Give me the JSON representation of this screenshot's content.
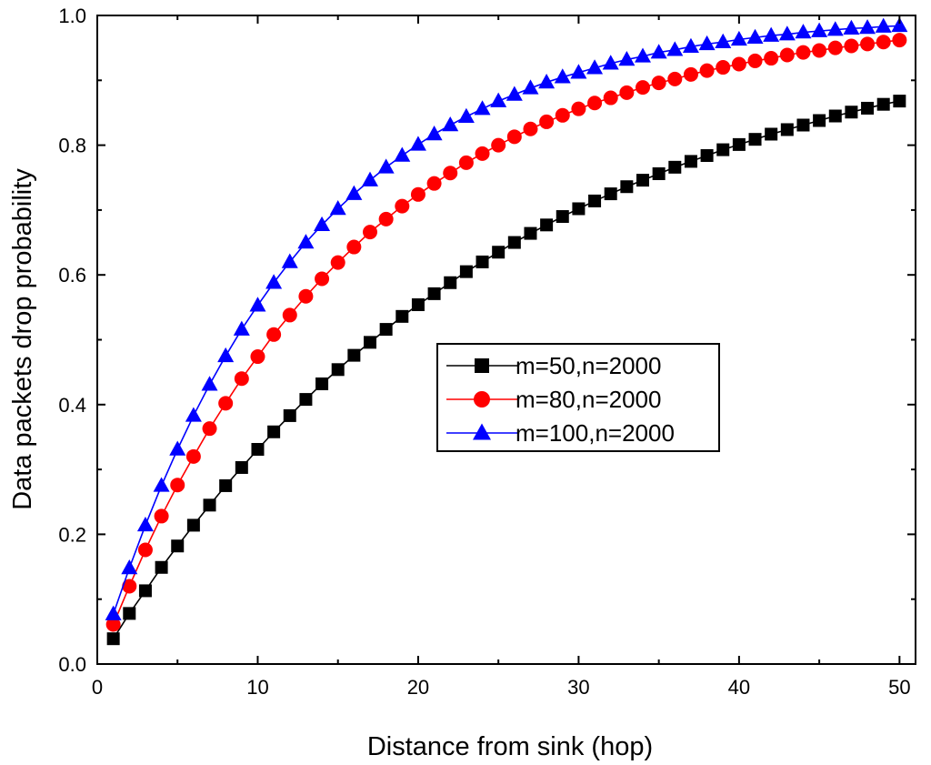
{
  "chart_data": {
    "type": "line",
    "title": "",
    "xlabel": "Distance from sink  (hop)",
    "ylabel": "Data packets drop probability",
    "xlim": [
      0,
      51
    ],
    "ylim": [
      0,
      1.0
    ],
    "x_ticks": [
      0,
      10,
      20,
      30,
      40,
      50
    ],
    "x_tick_labels": [
      "0",
      "10",
      "20",
      "30",
      "40",
      "50"
    ],
    "y_ticks": [
      0.0,
      0.2,
      0.4,
      0.6,
      0.8,
      1.0
    ],
    "y_tick_labels": [
      "0.0",
      "0.2",
      "0.4",
      "0.6",
      "0.8",
      "1.0"
    ],
    "grid": false,
    "legend_position": "center-right",
    "x": [
      1,
      2,
      3,
      4,
      5,
      6,
      7,
      8,
      9,
      10,
      11,
      12,
      13,
      14,
      15,
      16,
      17,
      18,
      19,
      20,
      21,
      22,
      23,
      24,
      25,
      26,
      27,
      28,
      29,
      30,
      31,
      32,
      33,
      34,
      35,
      36,
      37,
      38,
      39,
      40,
      41,
      42,
      43,
      44,
      45,
      46,
      47,
      48,
      49,
      50
    ],
    "series": [
      {
        "name": "m=50,n=2000",
        "color": "#000000",
        "marker": "square",
        "values": [
          0.039,
          0.078,
          0.113,
          0.149,
          0.182,
          0.214,
          0.245,
          0.275,
          0.303,
          0.331,
          0.358,
          0.383,
          0.408,
          0.432,
          0.454,
          0.476,
          0.496,
          0.516,
          0.536,
          0.554,
          0.571,
          0.588,
          0.605,
          0.62,
          0.635,
          0.65,
          0.664,
          0.677,
          0.69,
          0.702,
          0.714,
          0.725,
          0.736,
          0.746,
          0.756,
          0.766,
          0.775,
          0.784,
          0.793,
          0.801,
          0.809,
          0.817,
          0.824,
          0.831,
          0.838,
          0.845,
          0.851,
          0.857,
          0.863,
          0.868
        ]
      },
      {
        "name": "m=80,n=2000",
        "color": "#ff0000",
        "marker": "circle",
        "values": [
          0.061,
          0.12,
          0.176,
          0.228,
          0.276,
          0.32,
          0.363,
          0.402,
          0.44,
          0.474,
          0.508,
          0.538,
          0.567,
          0.594,
          0.619,
          0.643,
          0.666,
          0.686,
          0.706,
          0.724,
          0.741,
          0.757,
          0.773,
          0.787,
          0.8,
          0.813,
          0.825,
          0.836,
          0.846,
          0.856,
          0.865,
          0.873,
          0.881,
          0.889,
          0.896,
          0.902,
          0.909,
          0.915,
          0.92,
          0.925,
          0.93,
          0.934,
          0.939,
          0.943,
          0.946,
          0.95,
          0.953,
          0.956,
          0.959,
          0.962
        ]
      },
      {
        "name": "m=100,n=2000",
        "color": "#0000ff",
        "marker": "triangle",
        "values": [
          0.077,
          0.148,
          0.214,
          0.275,
          0.331,
          0.383,
          0.431,
          0.475,
          0.516,
          0.553,
          0.588,
          0.62,
          0.65,
          0.677,
          0.702,
          0.725,
          0.746,
          0.766,
          0.784,
          0.801,
          0.817,
          0.831,
          0.844,
          0.856,
          0.868,
          0.878,
          0.888,
          0.897,
          0.905,
          0.912,
          0.919,
          0.926,
          0.932,
          0.937,
          0.943,
          0.947,
          0.952,
          0.956,
          0.959,
          0.963,
          0.966,
          0.969,
          0.971,
          0.974,
          0.976,
          0.978,
          0.98,
          0.981,
          0.983,
          0.984
        ]
      }
    ]
  }
}
